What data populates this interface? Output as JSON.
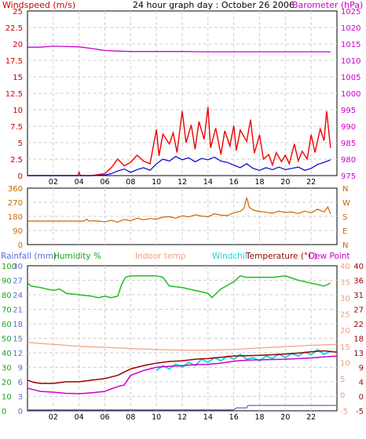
{
  "chart_data": [
    {
      "type": "line",
      "title": "24 hour graph day : October 26 2006",
      "left_axis": {
        "label": "Windspeed (m/s)",
        "ylim": [
          0,
          25
        ],
        "ticks": [
          "25",
          "22.5",
          "20",
          "17.5",
          "15",
          "12.5",
          "10",
          "7.5",
          "5",
          "2.5",
          "0"
        ]
      },
      "right_axis": {
        "label": "Barometer (hPa)",
        "ylim": [
          975,
          1025
        ],
        "ticks": [
          "1025",
          "1020",
          "1015",
          "1010",
          "1005",
          "1000",
          "995",
          "990",
          "985",
          "980",
          "975"
        ]
      },
      "x_ticks": [
        "02",
        "04",
        "06",
        "08",
        "10",
        "12",
        "14",
        "16",
        "18",
        "20",
        "22"
      ],
      "xlim": [
        0,
        24
      ],
      "grid": true,
      "series": [
        {
          "name": "Barometer",
          "axis": "right",
          "color": "#cc00cc",
          "x": [
            0,
            1,
            2,
            3,
            4,
            5,
            6,
            7,
            8,
            9,
            10,
            12,
            14,
            16,
            18,
            20,
            22,
            23.5
          ],
          "y": [
            1014,
            1014,
            1014.3,
            1014.2,
            1014.1,
            1013.6,
            1013,
            1012.8,
            1012.7,
            1012.7,
            1012.7,
            1012.7,
            1012.6,
            1012.6,
            1012.6,
            1012.6,
            1012.6,
            1012.6
          ]
        },
        {
          "name": "Wind average",
          "axis": "left",
          "color": "#0000cc",
          "x": [
            0,
            3,
            5,
            6,
            6.5,
            7,
            7.5,
            8,
            8.5,
            9,
            9.5,
            10,
            10.5,
            11,
            11.5,
            12,
            12.5,
            13,
            13.5,
            14,
            14.5,
            15,
            15.5,
            16,
            16.5,
            17,
            17.5,
            18,
            18.5,
            19,
            19.5,
            20,
            20.5,
            21,
            21.5,
            22,
            22.5,
            23,
            23.5
          ],
          "y": [
            0,
            0,
            0,
            0.1,
            0.3,
            0.7,
            1,
            0.5,
            0.9,
            1.2,
            0.8,
            1.8,
            2.5,
            2.2,
            2.9,
            2.4,
            2.7,
            2.1,
            2.6,
            2.4,
            2.8,
            2.2,
            2,
            1.6,
            1.2,
            1.8,
            1.1,
            0.8,
            1.2,
            0.9,
            1.3,
            0.9,
            1.1,
            1.3,
            0.8,
            1.1,
            1.7,
            2,
            2.4
          ]
        },
        {
          "name": "Wind gust",
          "axis": "left",
          "color": "#ee0000",
          "x": [
            0,
            3.9,
            4,
            4.1,
            5,
            6,
            6.5,
            7,
            7.5,
            8,
            8.5,
            9,
            9.5,
            10,
            10.2,
            10.5,
            11,
            11.3,
            11.6,
            12,
            12.3,
            12.7,
            13,
            13.3,
            13.7,
            14,
            14.2,
            14.6,
            15,
            15.3,
            15.7,
            16,
            16.2,
            16.5,
            17,
            17.3,
            17.6,
            18,
            18.3,
            18.7,
            19,
            19.3,
            19.7,
            20,
            20.3,
            20.7,
            21,
            21.3,
            21.7,
            22,
            22.3,
            22.7,
            23,
            23.2,
            23.5
          ],
          "y": [
            0,
            0,
            0.5,
            0,
            0,
            0.3,
            1.2,
            2.5,
            1.5,
            2,
            3.1,
            2.2,
            1.8,
            7,
            3,
            6.3,
            4.8,
            6.5,
            3.5,
            9.8,
            5,
            7.7,
            4,
            8.2,
            5.5,
            10.4,
            4.2,
            7.2,
            3.2,
            6.8,
            4.5,
            7.6,
            3.8,
            6.9,
            5.2,
            8.5,
            3.4,
            6.2,
            2.5,
            3.2,
            1.6,
            3.5,
            2.1,
            3.1,
            1.8,
            4.8,
            2.2,
            3.7,
            2.5,
            6.2,
            3.5,
            7.1,
            5.3,
            9.8,
            4.2
          ]
        }
      ]
    },
    {
      "type": "line",
      "title": "",
      "right_axis": {
        "label_letters": [
          "N",
          "W",
          "S",
          "E",
          "N"
        ]
      },
      "left_axis": {
        "ylim": [
          0,
          360
        ],
        "ticks": [
          "360",
          "270",
          "180",
          "90",
          "0"
        ]
      },
      "xlim": [
        0,
        24
      ],
      "series": [
        {
          "name": "Wind direction",
          "color": "#cc6600",
          "x": [
            0,
            4.4,
            4.6,
            4.8,
            5,
            5.5,
            6,
            6.5,
            7,
            7.5,
            8,
            8.5,
            9,
            9.5,
            10,
            10.5,
            11,
            11.5,
            12,
            12.5,
            13,
            13.5,
            14,
            14.5,
            15,
            15.5,
            16,
            16.5,
            16.8,
            17,
            17.2,
            17.5,
            18,
            18.5,
            19,
            19.5,
            20,
            20.5,
            21,
            21.5,
            22,
            22.5,
            23,
            23.3,
            23.5
          ],
          "y": [
            150,
            150,
            162,
            148,
            152,
            150,
            146,
            155,
            143,
            160,
            152,
            168,
            158,
            166,
            162,
            175,
            178,
            168,
            184,
            176,
            190,
            182,
            178,
            196,
            188,
            185,
            203,
            212,
            232,
            300,
            238,
            220,
            212,
            206,
            200,
            213,
            205,
            208,
            198,
            214,
            202,
            226,
            208,
            240,
            196
          ]
        }
      ]
    },
    {
      "type": "line",
      "title": "",
      "legend": [
        "Rainfall (mm)",
        "Humidity %",
        "Indoor temp",
        "Windchill",
        "Temperature (°C)",
        "Dew Point"
      ],
      "axes": {
        "rainfall": {
          "label": "Rainfall (mm)",
          "ticks": [
            "30",
            "27",
            "24",
            "21",
            "18",
            "15",
            "12",
            "9",
            "6",
            "3",
            "0"
          ],
          "ylim": [
            0,
            30
          ]
        },
        "humidity": {
          "label": "Humidity %",
          "ticks": [
            "100",
            "90",
            "80",
            "70",
            "60",
            "50",
            "40",
            "30",
            "20",
            "10",
            "0"
          ],
          "ylim": [
            0,
            100
          ]
        },
        "temp_right_1": {
          "ticks": [
            "40",
            "35",
            "30",
            "25",
            "20",
            "15",
            "10",
            "5",
            "0",
            "-5"
          ],
          "ylim": [
            -5,
            40
          ]
        },
        "temp_right_2": {
          "ticks": [
            "40",
            "36",
            "31",
            "27",
            "22",
            "18",
            "13",
            "9",
            "4",
            "0",
            "-5"
          ],
          "ylim": [
            -5,
            40
          ]
        }
      },
      "x_ticks": [
        "02",
        "04",
        "06",
        "08",
        "10",
        "12",
        "14",
        "16",
        "18",
        "20",
        "22"
      ],
      "xlim": [
        0,
        24
      ],
      "series": [
        {
          "name": "Rainfall (mm)",
          "color": "#5555cc",
          "x": [
            0,
            16,
            16.2,
            17,
            17.1,
            24
          ],
          "y": [
            0.2,
            0.2,
            0.6,
            0.6,
            1.1,
            1.1
          ]
        },
        {
          "name": "Humidity %",
          "color": "#22bb22",
          "x": [
            0,
            0.3,
            1,
            2,
            2.5,
            3,
            4,
            5,
            5.5,
            6,
            6.5,
            7,
            7.3,
            7.6,
            8,
            9,
            10,
            10.5,
            11,
            12,
            13,
            14,
            14.3,
            15,
            16,
            16.5,
            17,
            18,
            19,
            20,
            21,
            22,
            23,
            23.5
          ],
          "y": [
            88,
            86,
            85,
            83,
            84,
            81,
            80,
            79,
            78,
            79,
            78,
            79,
            87,
            92,
            93,
            93,
            93,
            92,
            86,
            85,
            83,
            81,
            78,
            84,
            89,
            93,
            92,
            92,
            92,
            93,
            90,
            88,
            86,
            88
          ]
        },
        {
          "name": "Indoor temp",
          "color": "#f4a68a",
          "x": [
            0,
            2,
            4,
            6,
            8,
            10,
            12,
            14,
            16,
            18,
            20,
            22,
            24
          ],
          "y": [
            16.2,
            15.6,
            15,
            14.7,
            14.3,
            14,
            13.8,
            13.8,
            14,
            14.5,
            14.9,
            15.3,
            15.6
          ]
        },
        {
          "name": "Windchill",
          "color": "#22d5dd",
          "x": [
            10,
            10.5,
            11,
            11.5,
            12,
            12.5,
            13,
            13.5,
            14,
            14.5,
            15,
            15.5,
            16,
            16.5,
            17,
            17.5,
            18,
            18.5,
            19,
            19.5,
            20,
            20.5,
            21,
            21.5,
            22,
            22.5,
            23,
            23.5
          ],
          "y": [
            7.5,
            9,
            8,
            9.5,
            8.5,
            10,
            9,
            11,
            10,
            11.5,
            10.5,
            12,
            11,
            12.5,
            11,
            11.5,
            10.5,
            12,
            11.2,
            12.6,
            11.5,
            12.8,
            12,
            13.2,
            12.4,
            14,
            12.5,
            13.5
          ]
        },
        {
          "name": "Temperature (°C)",
          "color": "#990000",
          "x": [
            0,
            0.5,
            1,
            2,
            3,
            4,
            5,
            6,
            7,
            8,
            9,
            10,
            11,
            12,
            13,
            14,
            15,
            16,
            17,
            18,
            19,
            20,
            21,
            22,
            23,
            24
          ],
          "y": [
            4.5,
            3.8,
            3.5,
            3.5,
            4,
            4,
            4.5,
            5,
            6,
            8,
            9,
            9.8,
            10.3,
            10.5,
            11,
            11.2,
            11.6,
            12,
            12.1,
            12.2,
            12.4,
            12.6,
            12.9,
            13.3,
            13.6,
            13.2
          ]
        },
        {
          "name": "Dew Point",
          "color": "#cc00cc",
          "x": [
            0,
            1,
            2,
            3,
            4,
            5,
            6,
            6.5,
            7,
            7.5,
            8,
            9,
            10,
            11,
            12,
            13,
            14,
            15,
            16,
            17,
            18,
            19,
            20,
            21,
            22,
            23,
            24
          ],
          "y": [
            2,
            1,
            0.8,
            0.4,
            0.3,
            0.6,
            1,
            1.8,
            2.5,
            3,
            6,
            7.5,
            8.5,
            8.8,
            9,
            9.3,
            9.4,
            9.8,
            10.4,
            10.7,
            10.8,
            10.9,
            11,
            11.2,
            11.4,
            11.7,
            12
          ]
        }
      ]
    }
  ]
}
